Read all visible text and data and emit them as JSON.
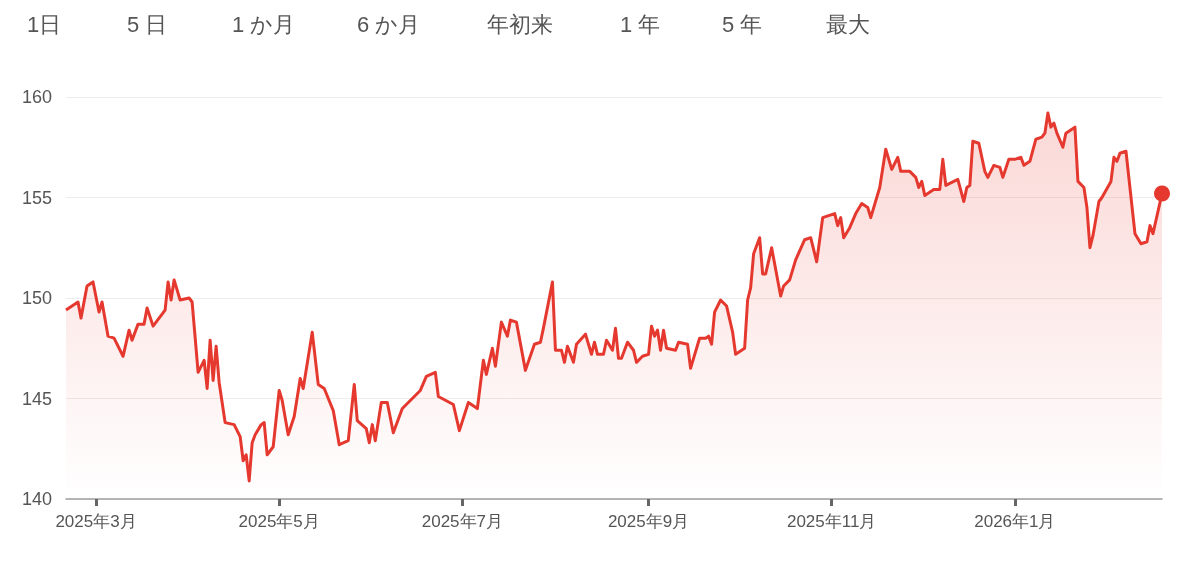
{
  "chart_data": {
    "type": "area",
    "annotations": [
      "1日",
      "5 日",
      "1 か月",
      "6 か月",
      "年初来",
      "1 年",
      "5 年",
      "最大"
    ],
    "color": "#e5392f",
    "grid": "y",
    "xlim": [
      "2025-02-19",
      "2026-02-19"
    ],
    "xticks": [
      {
        "value": "2025-03-01",
        "label": "2025年3月"
      },
      {
        "value": "2025-05-01",
        "label": "2025年5月"
      },
      {
        "value": "2025-07-01",
        "label": "2025年7月"
      },
      {
        "value": "2025-09-01",
        "label": "2025年9月"
      },
      {
        "value": "2025-11-01",
        "label": "2025年11月"
      },
      {
        "value": "2026-01-01",
        "label": "2026年1月"
      }
    ],
    "ylim": [
      140,
      160
    ],
    "yticks": [
      140,
      145,
      150,
      155,
      160
    ],
    "x": [
      "2025-02-19",
      "2025-02-23",
      "2025-02-24",
      "2025-02-26",
      "2025-02-28",
      "2025-03-02",
      "2025-03-03",
      "2025-03-05",
      "2025-03-07",
      "2025-03-10",
      "2025-03-12",
      "2025-03-13",
      "2025-03-15",
      "2025-03-17",
      "2025-03-18",
      "2025-03-20",
      "2025-03-24",
      "2025-03-25",
      "2025-03-26",
      "2025-03-27",
      "2025-03-29",
      "2025-04-01",
      "2025-04-02",
      "2025-04-04",
      "2025-04-06",
      "2025-04-07",
      "2025-04-08",
      "2025-04-09",
      "2025-04-10",
      "2025-04-11",
      "2025-04-13",
      "2025-04-16",
      "2025-04-18",
      "2025-04-19",
      "2025-04-20",
      "2025-04-21",
      "2025-04-22",
      "2025-04-23",
      "2025-04-25",
      "2025-04-26",
      "2025-04-27",
      "2025-04-29",
      "2025-05-01",
      "2025-05-02",
      "2025-05-04",
      "2025-05-06",
      "2025-05-08",
      "2025-05-09",
      "2025-05-12",
      "2025-05-14",
      "2025-05-16",
      "2025-05-19",
      "2025-05-21",
      "2025-05-24",
      "2025-05-26",
      "2025-05-27",
      "2025-05-30",
      "2025-05-31",
      "2025-06-01",
      "2025-06-02",
      "2025-06-04",
      "2025-06-06",
      "2025-06-08",
      "2025-06-11",
      "2025-06-17",
      "2025-06-19",
      "2025-06-22",
      "2025-06-23",
      "2025-06-28",
      "2025-06-30",
      "2025-07-03",
      "2025-07-06",
      "2025-07-08",
      "2025-07-09",
      "2025-07-11",
      "2025-07-12",
      "2025-07-14",
      "2025-07-16",
      "2025-07-17",
      "2025-07-19",
      "2025-07-22",
      "2025-07-25",
      "2025-07-27",
      "2025-07-28",
      "2025-07-31",
      "2025-08-01",
      "2025-08-03",
      "2025-08-04",
      "2025-08-05",
      "2025-08-07",
      "2025-08-08",
      "2025-08-11",
      "2025-08-13",
      "2025-08-14",
      "2025-08-15",
      "2025-08-17",
      "2025-08-18",
      "2025-08-20",
      "2025-08-21",
      "2025-08-22",
      "2025-08-23",
      "2025-08-25",
      "2025-08-27",
      "2025-08-28",
      "2025-08-30",
      "2025-09-01",
      "2025-09-02",
      "2025-09-03",
      "2025-09-04",
      "2025-09-05",
      "2025-09-06",
      "2025-09-07",
      "2025-09-10",
      "2025-09-11",
      "2025-09-14",
      "2025-09-15",
      "2025-09-18",
      "2025-09-20",
      "2025-09-21",
      "2025-09-22",
      "2025-09-23",
      "2025-09-25",
      "2025-09-27",
      "2025-09-29",
      "2025-09-30",
      "2025-10-01",
      "2025-10-03",
      "2025-10-04",
      "2025-10-05",
      "2025-10-06",
      "2025-10-08",
      "2025-10-09",
      "2025-10-10",
      "2025-10-12",
      "2025-10-15",
      "2025-10-16",
      "2025-10-18",
      "2025-10-20",
      "2025-10-23",
      "2025-10-25",
      "2025-10-27",
      "2025-10-29",
      "2025-11-02",
      "2025-11-03",
      "2025-11-04",
      "2025-11-05",
      "2025-11-07",
      "2025-11-09",
      "2025-11-11",
      "2025-11-13",
      "2025-11-14",
      "2025-11-17",
      "2025-11-19",
      "2025-11-21",
      "2025-11-23",
      "2025-11-24",
      "2025-11-27",
      "2025-11-29",
      "2025-11-30",
      "2025-12-01",
      "2025-12-02",
      "2025-12-05",
      "2025-12-07",
      "2025-12-08",
      "2025-12-09",
      "2025-12-13",
      "2025-12-15",
      "2025-12-16",
      "2025-12-17",
      "2025-12-18",
      "2025-12-20",
      "2025-12-22",
      "2025-12-23",
      "2025-12-25",
      "2025-12-27",
      "2025-12-28",
      "2025-12-30",
      "2026-01-01",
      "2026-01-03",
      "2026-01-04",
      "2026-01-06",
      "2026-01-08",
      "2026-01-10",
      "2026-01-11",
      "2026-01-12",
      "2026-01-13",
      "2026-01-14",
      "2026-01-15",
      "2026-01-17",
      "2026-01-18",
      "2026-01-19",
      "2026-01-21",
      "2026-01-22",
      "2026-01-24",
      "2026-01-25",
      "2026-01-26",
      "2026-01-27",
      "2026-01-29",
      "2026-01-30",
      "2026-02-02",
      "2026-02-03",
      "2026-02-04",
      "2026-02-05",
      "2026-02-07",
      "2026-02-10",
      "2026-02-12",
      "2026-02-14",
      "2026-02-15",
      "2026-02-16",
      "2026-02-19"
    ],
    "values": [
      149.4,
      149.8,
      149.0,
      150.6,
      150.8,
      149.3,
      149.8,
      148.1,
      148.0,
      147.1,
      148.4,
      147.9,
      148.7,
      148.7,
      149.5,
      148.6,
      149.4,
      150.8,
      149.9,
      150.9,
      149.9,
      150.0,
      149.8,
      146.3,
      146.9,
      145.5,
      147.9,
      145.9,
      147.6,
      145.8,
      143.8,
      143.7,
      143.1,
      141.9,
      142.2,
      140.9,
      142.8,
      143.2,
      143.7,
      143.8,
      142.2,
      142.6,
      145.4,
      144.9,
      143.2,
      144.1,
      146.0,
      145.5,
      148.3,
      145.7,
      145.5,
      144.4,
      142.7,
      142.9,
      145.7,
      143.9,
      143.5,
      142.8,
      143.7,
      142.9,
      144.8,
      144.8,
      143.3,
      144.5,
      145.4,
      146.1,
      146.3,
      145.1,
      144.7,
      143.4,
      144.8,
      144.5,
      146.9,
      146.2,
      147.5,
      146.6,
      148.8,
      148.1,
      148.9,
      148.8,
      146.4,
      147.7,
      147.8,
      148.5,
      150.8,
      147.4,
      147.4,
      146.8,
      147.6,
      146.8,
      147.7,
      148.2,
      147.2,
      147.8,
      147.2,
      147.2,
      147.9,
      147.4,
      148.5,
      147.0,
      147.0,
      147.8,
      147.4,
      146.8,
      147.1,
      147.2,
      148.6,
      148.1,
      148.4,
      147.4,
      148.4,
      147.5,
      147.4,
      147.8,
      147.7,
      146.5,
      148.0,
      148.0,
      148.1,
      147.7,
      149.3,
      149.9,
      149.6,
      148.3,
      147.2,
      147.3,
      147.5,
      149.9,
      150.5,
      152.2,
      153.0,
      151.2,
      151.2,
      152.5,
      150.1,
      150.6,
      150.9,
      151.9,
      152.9,
      153.0,
      151.8,
      154.0,
      154.2,
      153.6,
      154.0,
      153.0,
      153.5,
      154.2,
      154.7,
      154.5,
      154.0,
      155.5,
      157.4,
      156.4,
      157.0,
      156.3,
      156.3,
      156.0,
      155.5,
      155.8,
      155.1,
      155.4,
      155.4,
      156.9,
      155.6,
      155.9,
      154.8,
      155.5,
      155.6,
      157.8,
      157.7,
      156.3,
      156.0,
      156.6,
      156.5,
      156.0,
      156.9,
      156.9,
      157.0,
      156.6,
      156.8,
      157.9,
      158.0,
      158.2,
      159.2,
      158.5,
      158.7,
      158.2,
      157.5,
      158.2,
      158.3,
      158.5,
      155.8,
      155.5,
      154.5,
      152.5,
      153.1,
      154.8,
      155.0,
      155.8,
      157.0,
      156.8,
      157.2,
      157.3,
      153.2,
      152.7,
      152.8,
      153.6,
      153.2,
      155.2
    ]
  }
}
